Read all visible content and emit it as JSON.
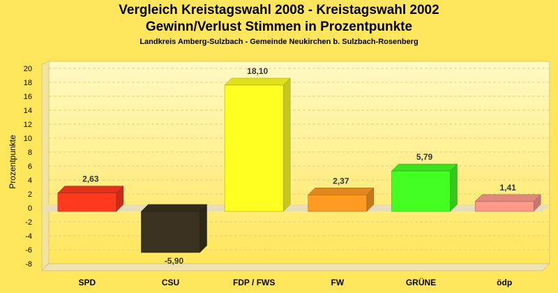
{
  "title_line1": "Vergleich Kreistagswahl 2008 - Kreistagswahl 2002",
  "title_line2": "Gewinn/Verlust Stimmen in Prozentpunkte",
  "subtitle": "Landkreis Amberg-Sulzbach - Gemeinde Neukirchen b. Sulzbach-Rosenberg",
  "colors": {
    "background": "#FFE65C",
    "plot_top": "#FFF9C4",
    "plot_bottom": "#FFE65C",
    "grid": "#E6D27A"
  },
  "chart_data": {
    "type": "bar",
    "title": "Vergleich Kreistagswahl 2008 - Kreistagswahl 2002",
    "subtitle": "Gewinn/Verlust Stimmen in Prozentpunkte",
    "xlabel": "",
    "ylabel": "Prozentpunkte",
    "ylim": [
      -8,
      20
    ],
    "ytick_step": 2,
    "grid": true,
    "categories": [
      "SPD",
      "CSU",
      "FDP / FWS",
      "FW",
      "GRÜNE",
      "ödp"
    ],
    "values": [
      2.63,
      -5.9,
      18.1,
      2.37,
      5.79,
      1.41
    ],
    "value_labels": [
      "2,63",
      "-5,90",
      "18,10",
      "2,37",
      "5,79",
      "1,41"
    ],
    "bar_colors": [
      "#FF3A1E",
      "#3A3220",
      "#FFFF22",
      "#FF9A22",
      "#44FF22",
      "#FF9A8A"
    ]
  }
}
